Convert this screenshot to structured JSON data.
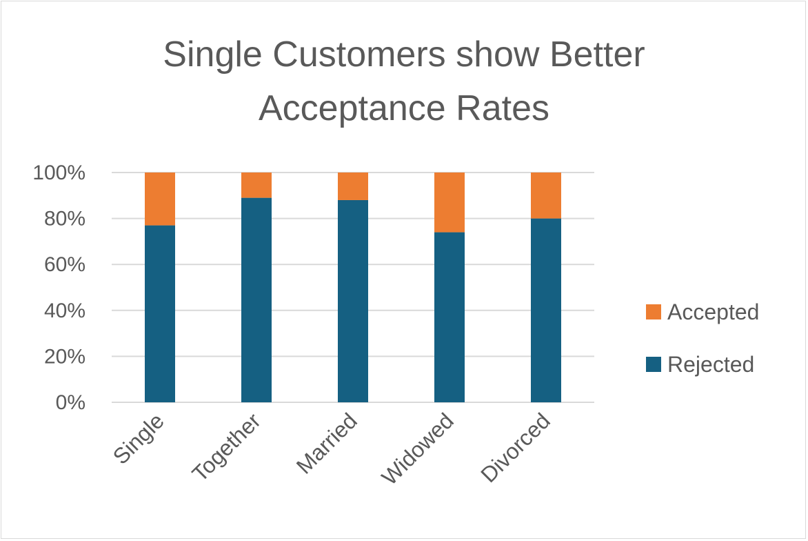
{
  "colors": {
    "accepted": "#ED7D31",
    "rejected": "#156082",
    "gridline": "#d9d9d9",
    "text": "#595959"
  },
  "chart_data": {
    "type": "bar",
    "stacked": true,
    "percent_stacked": true,
    "title_lines": [
      "Single Customers show Better",
      "Acceptance Rates"
    ],
    "xlabel": "",
    "ylabel": "",
    "categories": [
      "Single",
      "Together",
      "Married",
      "Widowed",
      "Divorced"
    ],
    "series": [
      {
        "name": "Rejected",
        "values": [
          77,
          89,
          88,
          74,
          80
        ],
        "color": "#156082"
      },
      {
        "name": "Accepted",
        "values": [
          23,
          11,
          12,
          26,
          20
        ],
        "color": "#ED7D31"
      }
    ],
    "ylim": [
      0,
      100
    ],
    "yticks": [
      0,
      20,
      40,
      60,
      80,
      100
    ],
    "ytick_labels": [
      "0%",
      "20%",
      "40%",
      "60%",
      "80%",
      "100%"
    ],
    "grid": true,
    "legend": {
      "position": "right",
      "entries": [
        "Accepted",
        "Rejected"
      ]
    }
  }
}
